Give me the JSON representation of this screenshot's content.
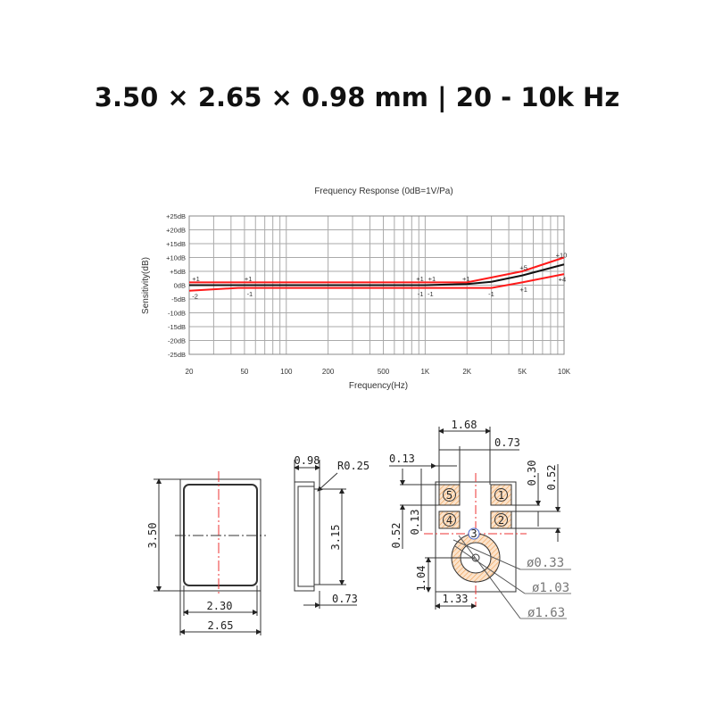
{
  "headline": "3.50 × 2.65 × 0.98 mm | 20 - 10k Hz",
  "chart_data": {
    "type": "line",
    "title": "Frequency Response (0dB=1V/Pa)",
    "xlabel": "Frequency(Hz)",
    "ylabel": "Sensitivity(dB)",
    "x_scale": "log",
    "xlim": [
      20,
      10000
    ],
    "ylim": [
      -25,
      25
    ],
    "grid": true,
    "x_ticks": [
      20,
      50,
      100,
      200,
      500,
      1000,
      2000,
      5000,
      10000
    ],
    "x_tick_labels": [
      "20",
      "50",
      "100",
      "200",
      "500",
      "1K",
      "2K",
      "5K",
      "10K"
    ],
    "y_ticks": [
      25,
      20,
      15,
      10,
      5,
      0,
      -5,
      -10,
      -15,
      -20,
      -25
    ],
    "y_tick_labels": [
      "+25dB",
      "+20dB",
      "+15dB",
      "+10dB",
      "+5dB",
      "0dB",
      "-5dB",
      "-10dB",
      "-15dB",
      "-20dB",
      "-25dB"
    ],
    "series": [
      {
        "color": "#ff1a1a",
        "x": [
          20,
          2000,
          5000,
          10000
        ],
        "y": [
          1,
          1,
          5,
          10
        ]
      },
      {
        "color": "#111111",
        "x": [
          20,
          1000,
          2000,
          3000,
          5000,
          10000
        ],
        "y": [
          0,
          0,
          0.4,
          1.2,
          3.5,
          7.5
        ]
      },
      {
        "color": "#ff1a1a",
        "x": [
          20,
          45,
          3000,
          5000,
          10000
        ],
        "y": [
          -2,
          -1,
          -1,
          1,
          4
        ]
      }
    ],
    "annotations": [
      {
        "text": "+1",
        "x": 21,
        "y": 2.5
      },
      {
        "text": "-2",
        "x": 21,
        "y": -3.8
      },
      {
        "text": "+1",
        "x": 50,
        "y": 2.5
      },
      {
        "text": "-1",
        "x": 52,
        "y": -3
      },
      {
        "text": "+1",
        "x": 860,
        "y": 2.5
      },
      {
        "text": "-1",
        "x": 880,
        "y": -3
      },
      {
        "text": "+1",
        "x": 1050,
        "y": 2.5
      },
      {
        "text": "-1",
        "x": 1040,
        "y": -3
      },
      {
        "text": "+1",
        "x": 1850,
        "y": 2.5
      },
      {
        "text": "-1",
        "x": 2850,
        "y": -3
      },
      {
        "text": "+5",
        "x": 4800,
        "y": 6.5
      },
      {
        "text": "+1",
        "x": 4800,
        "y": -1.5
      },
      {
        "text": "+10",
        "x": 8700,
        "y": 11
      },
      {
        "text": "+4",
        "x": 9100,
        "y": 2.2
      }
    ]
  },
  "drawings": {
    "front": {
      "height": "3.50",
      "inner_width": "2.30",
      "width": "2.65"
    },
    "side": {
      "thickness": "0.98",
      "radius": "R0.25",
      "inner_height": "3.15",
      "base": "0.73"
    },
    "bottom": {
      "pad_span": "1.68",
      "pad_width": "0.73",
      "pad_gap_x": "0.13",
      "pad_gap_y_right": "0.30",
      "pad_pitch_right": "0.52",
      "pad_pitch_left": "0.52",
      "pad_gap_y_left": "0.13",
      "hole_y": "1.04",
      "hole_x": "1.33",
      "d_hole": "ø0.33",
      "d_inner": "ø1.03",
      "d_outer": "ø1.63",
      "pads": [
        "1",
        "2",
        "3",
        "4",
        "5"
      ]
    }
  }
}
